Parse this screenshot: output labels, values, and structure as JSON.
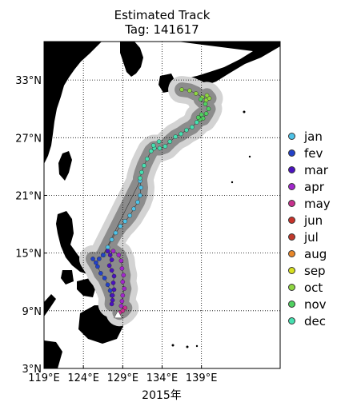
{
  "title": "Estimated Track",
  "subtitle": "Tag: 141617",
  "xlabel": "2015年",
  "colors": {
    "land": "#000000",
    "confidence_outer": "#d3d3d3",
    "confidence_inner": "#8c8c8c",
    "start_marker": "#ffffff"
  },
  "chart_data": {
    "type": "scatter",
    "xlim": [
      119,
      149
    ],
    "ylim": [
      3,
      37
    ],
    "x_ticks": [
      119,
      124,
      129,
      134,
      139
    ],
    "y_ticks": [
      3,
      9,
      15,
      21,
      27,
      33
    ],
    "x_tick_labels": [
      "119°E",
      "124°E",
      "129°E",
      "134°E",
      "139°E"
    ],
    "y_tick_labels": [
      "3°N",
      "9°N",
      "15°N",
      "21°N",
      "27°N",
      "33°N"
    ],
    "grid": true,
    "legend_position": "right",
    "start": [
      128.4,
      8.5
    ],
    "series": [
      {
        "name": "jan",
        "color": "#4fc3e8",
        "points": [
          [
            126.6,
            14.8
          ],
          [
            127.1,
            15.6
          ],
          [
            127.6,
            16.4
          ],
          [
            128.1,
            17.1
          ],
          [
            128.7,
            17.8
          ],
          [
            129.3,
            18.3
          ],
          [
            129.9,
            18.9
          ],
          [
            130.4,
            19.6
          ],
          [
            130.9,
            20.3
          ],
          [
            131.2,
            21.0
          ],
          [
            131.3,
            21.8
          ],
          [
            131.2,
            22.5
          ]
        ]
      },
      {
        "name": "fev",
        "color": "#2341c8",
        "points": [
          [
            126.5,
            14.8
          ],
          [
            126.0,
            14.4
          ],
          [
            125.6,
            14.0
          ],
          [
            125.2,
            14.4
          ],
          [
            125.8,
            13.6
          ],
          [
            126.2,
            12.9
          ],
          [
            126.7,
            12.4
          ],
          [
            127.1,
            11.7
          ],
          [
            127.4,
            11.1
          ],
          [
            127.6,
            10.6
          ]
        ]
      },
      {
        "name": "mar",
        "color": "#4b12c0",
        "points": [
          [
            127.7,
            10.1
          ],
          [
            127.6,
            9.7
          ],
          [
            127.7,
            10.6
          ],
          [
            127.9,
            11.2
          ],
          [
            127.8,
            11.9
          ],
          [
            127.9,
            12.6
          ],
          [
            127.6,
            13.2
          ],
          [
            127.3,
            13.7
          ],
          [
            127.6,
            14.3
          ],
          [
            127.4,
            14.8
          ],
          [
            127.1,
            15.2
          ]
        ]
      },
      {
        "name": "apr",
        "color": "#a226cc",
        "points": [
          [
            127.8,
            15.2
          ],
          [
            128.5,
            14.8
          ],
          [
            128.8,
            14.2
          ],
          [
            128.9,
            13.4
          ],
          [
            129.1,
            12.7
          ],
          [
            129.0,
            12.0
          ],
          [
            129.2,
            11.3
          ],
          [
            129.0,
            10.6
          ],
          [
            128.9,
            10.0
          ],
          [
            128.8,
            9.5
          ]
        ]
      },
      {
        "name": "may",
        "color": "#c8308e",
        "points": [
          [
            129.3,
            9.3
          ],
          [
            129.0,
            9.0
          ],
          [
            128.6,
            8.8
          ]
        ]
      },
      {
        "name": "jun",
        "color": "#c8322a",
        "points": []
      },
      {
        "name": "jul",
        "color": "#c0392b",
        "points": []
      },
      {
        "name": "aug",
        "color": "#e8872a",
        "points": []
      },
      {
        "name": "sep",
        "color": "#d8e020",
        "points": []
      },
      {
        "name": "oct",
        "color": "#8fd642",
        "points": [
          [
            136.5,
            32.0
          ],
          [
            137.5,
            31.9
          ],
          [
            138.3,
            31.6
          ],
          [
            139.1,
            31.2
          ],
          [
            139.6,
            30.9
          ],
          [
            140.0,
            31.1
          ],
          [
            139.7,
            31.4
          ]
        ]
      },
      {
        "name": "nov",
        "color": "#50d060",
        "points": [
          [
            138.9,
            31.0
          ],
          [
            139.5,
            30.5
          ],
          [
            139.9,
            30.0
          ],
          [
            139.6,
            29.5
          ],
          [
            139.2,
            29.0
          ],
          [
            138.8,
            28.9
          ],
          [
            139.0,
            29.4
          ],
          [
            138.6,
            29.1
          ]
        ]
      },
      {
        "name": "dec",
        "color": "#46e0b0",
        "points": [
          [
            138.4,
            28.6
          ],
          [
            137.8,
            28.1
          ],
          [
            137.1,
            27.8
          ],
          [
            136.4,
            27.4
          ],
          [
            135.7,
            27.1
          ],
          [
            135.0,
            26.6
          ],
          [
            134.4,
            26.1
          ],
          [
            133.7,
            25.9
          ],
          [
            133.0,
            25.9
          ],
          [
            132.6,
            25.6
          ],
          [
            132.1,
            24.8
          ],
          [
            131.7,
            24.1
          ],
          [
            131.4,
            23.4
          ],
          [
            131.2,
            22.8
          ],
          [
            132.9,
            26.2
          ],
          [
            133.6,
            26.6
          ]
        ]
      }
    ]
  }
}
